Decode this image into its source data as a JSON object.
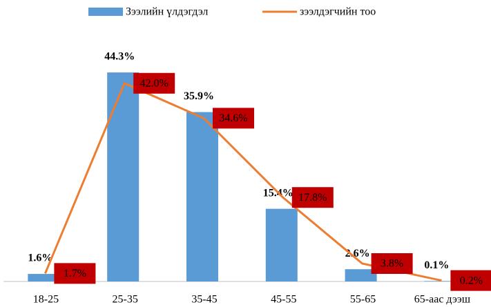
{
  "chart_data": {
    "type": "bar_line",
    "categories": [
      "18-25",
      "25-35",
      "35-45",
      "45-55",
      "55-65",
      "65-аас дээш"
    ],
    "series": [
      {
        "name": "Зээлийн үлдэгдэл",
        "type": "bar",
        "color": "#5b9bd5",
        "values": [
          1.6,
          44.3,
          35.9,
          15.4,
          2.6,
          0.1
        ],
        "value_labels": [
          "1.6%",
          "44.3%",
          "35.9%",
          "15.4%",
          "2.6%",
          "0.1%"
        ]
      },
      {
        "name": "зээлдэгчийн тоо",
        "type": "line",
        "color": "#ed7d31",
        "values": [
          1.7,
          42.0,
          34.6,
          17.8,
          3.8,
          0.2
        ],
        "value_labels": [
          "1.7%",
          "42.0%",
          "34.6%",
          "17.8%",
          "3.8%",
          "0.2%"
        ],
        "label_box_color": "#c00000"
      }
    ],
    "legend": "top"
  }
}
